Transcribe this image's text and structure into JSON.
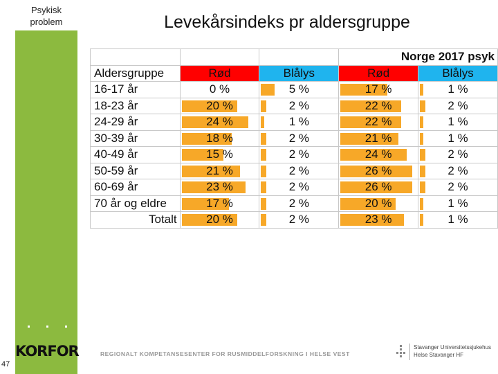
{
  "sidebar": {
    "label_line1": "Psykisk",
    "label_line2": "problem"
  },
  "slide": {
    "title": "Levekårsindeks pr aldersgruppe",
    "page_number": "47"
  },
  "footer": {
    "logo": "KORFOR",
    "tagline": "REGIONALT KOMPETANSESENTER FOR RUSMIDDELFORSKNING I HELSE VEST",
    "hospital_line1": "Stavanger Universitetssjukehus",
    "hospital_line2": "Helse Stavanger HF"
  },
  "colors": {
    "red": "#ff0000",
    "blue": "#1fb4ee",
    "bar": "#f7a828",
    "sidebar": "#8cba3f"
  },
  "table": {
    "group_header": "Norge 2017 psyk",
    "headers": [
      "Aldersgruppe",
      "Rød",
      "Blålys",
      "Rød",
      "Blålys"
    ],
    "rows": [
      {
        "age": "16-17 år",
        "rod1": "0 %",
        "bla1": "5 %",
        "rod2": "17 %",
        "bla2": "1 %"
      },
      {
        "age": "18-23 år",
        "rod1": "20 %",
        "bla1": "2 %",
        "rod2": "22 %",
        "bla2": "2 %"
      },
      {
        "age": "24-29 år",
        "rod1": "24 %",
        "bla1": "1 %",
        "rod2": "22 %",
        "bla2": "1 %"
      },
      {
        "age": "30-39 år",
        "rod1": "18 %",
        "bla1": "2 %",
        "rod2": "21 %",
        "bla2": "1 %"
      },
      {
        "age": "40-49 år",
        "rod1": "15 %",
        "bla1": "2 %",
        "rod2": "24 %",
        "bla2": "2 %"
      },
      {
        "age": "50-59 år",
        "rod1": "21 %",
        "bla1": "2 %",
        "rod2": "26 %",
        "bla2": "2 %"
      },
      {
        "age": "60-69 år",
        "rod1": "23 %",
        "bla1": "2 %",
        "rod2": "26 %",
        "bla2": "2 %"
      },
      {
        "age": "70 år og eldre",
        "rod1": "17 %",
        "bla1": "2 %",
        "rod2": "20 %",
        "bla2": "1 %"
      }
    ],
    "total": {
      "label": "Totalt",
      "rod1": "20 %",
      "bla1": "2 %",
      "rod2": "23 %",
      "bla2": "1 %"
    },
    "bar_values": {
      "rod1": [
        0,
        20,
        24,
        18,
        15,
        21,
        23,
        17,
        20
      ],
      "bla1": [
        5,
        2,
        1,
        2,
        2,
        2,
        2,
        2,
        2
      ],
      "rod2": [
        17,
        22,
        22,
        21,
        24,
        26,
        26,
        20,
        23
      ],
      "bla2": [
        1,
        2,
        1,
        1,
        2,
        2,
        2,
        1,
        1
      ]
    }
  }
}
